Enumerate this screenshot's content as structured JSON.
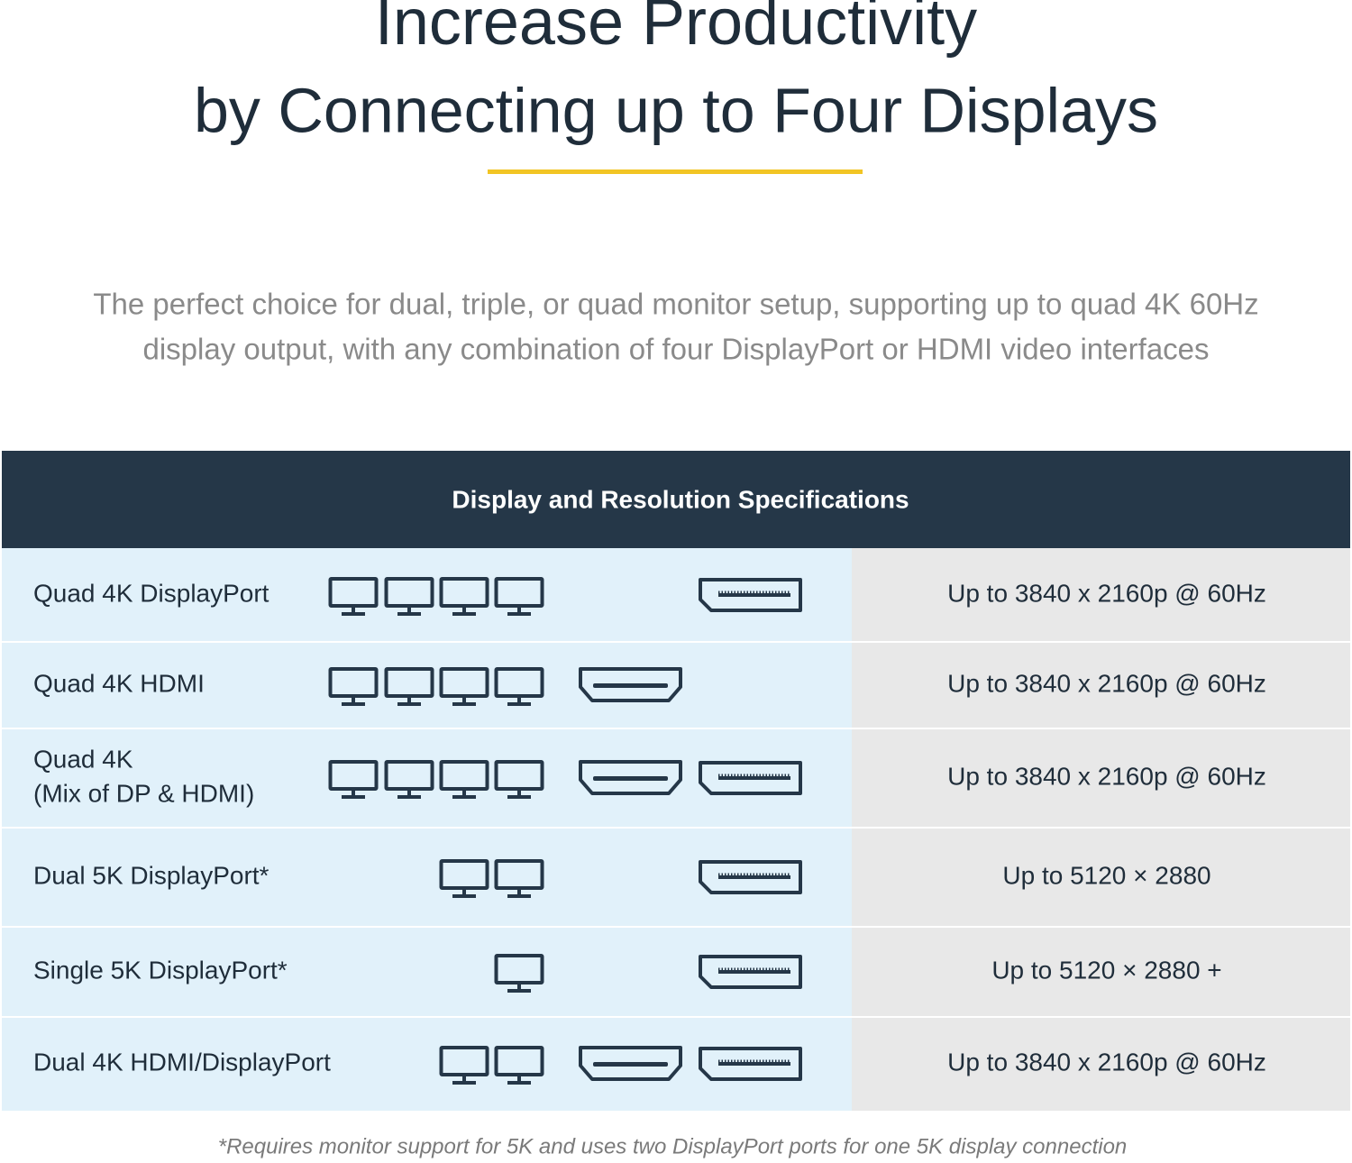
{
  "header": {
    "title_lines": [
      "Increase Productivity",
      "by Connecting up to Four Displays"
    ],
    "subtitle_lines": [
      "The perfect choice for dual, triple, or quad monitor setup, supporting up to quad 4K 60Hz",
      "display output, with any combination of four DisplayPort or HDMI video interfaces"
    ]
  },
  "table": {
    "title": "Display and Resolution Specifications",
    "rows": [
      {
        "label_lines": [
          "Quad 4K DisplayPort"
        ],
        "monitors": 4,
        "hdmi": false,
        "displayport": true,
        "resolution": "Up to 3840 x 2160p @ 60Hz"
      },
      {
        "label_lines": [
          "Quad 4K HDMI"
        ],
        "monitors": 4,
        "hdmi": true,
        "displayport": false,
        "resolution": "Up to 3840 x 2160p @ 60Hz"
      },
      {
        "label_lines": [
          "Quad 4K",
          "(Mix of DP & HDMI)"
        ],
        "monitors": 4,
        "hdmi": true,
        "displayport": true,
        "resolution": "Up to 3840 x 2160p @ 60Hz"
      },
      {
        "label_lines": [
          "Dual 5K DisplayPort*"
        ],
        "monitors": 2,
        "hdmi": false,
        "displayport": true,
        "resolution": "Up to 5120 × 2880"
      },
      {
        "label_lines": [
          "Single 5K DisplayPort*"
        ],
        "monitors": 1,
        "hdmi": false,
        "displayport": true,
        "resolution": "Up to 5120 × 2880 +"
      },
      {
        "label_lines": [
          "Dual 4K HDMI/DisplayPort"
        ],
        "monitors": 2,
        "hdmi": true,
        "displayport": true,
        "resolution": "Up to 3840 x 2160p @ 60Hz"
      }
    ]
  },
  "footnote": "*Requires monitor support for 5K and uses two DisplayPort ports for one 5K display connection"
}
